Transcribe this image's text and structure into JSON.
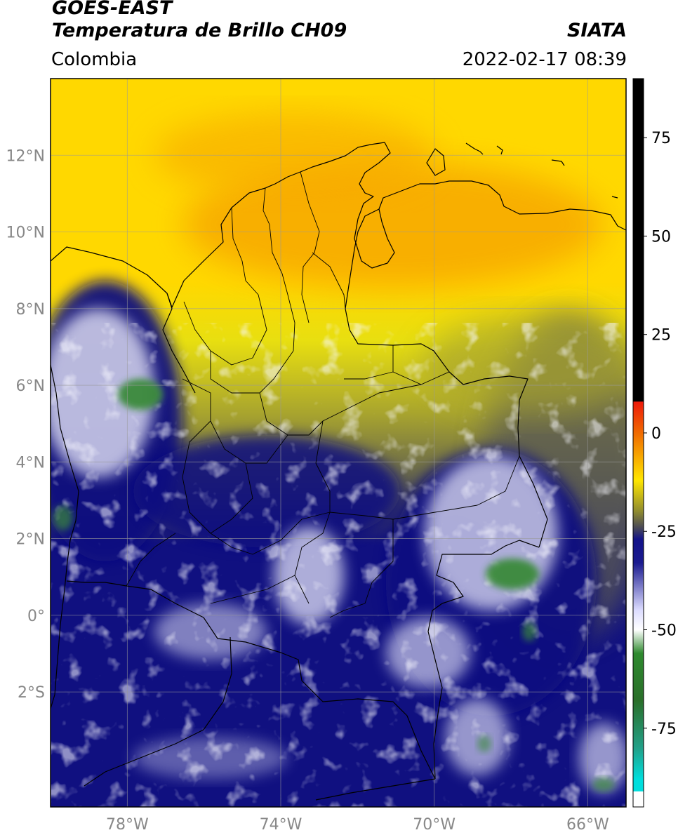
{
  "header": {
    "title_line1": "GOES-EAST",
    "title_line2": "Temperatura de Brillo CH09",
    "organization": "SIATA",
    "region": "Colombia",
    "datetime": "2022-02-17 08:39"
  },
  "axes": {
    "lat_ticks": [
      {
        "value": 12,
        "label": "12°N"
      },
      {
        "value": 10,
        "label": "10°N"
      },
      {
        "value": 8,
        "label": "8°N"
      },
      {
        "value": 6,
        "label": "6°N"
      },
      {
        "value": 4,
        "label": "4°N"
      },
      {
        "value": 2,
        "label": "2°N"
      },
      {
        "value": 0,
        "label": "0°"
      },
      {
        "value": -2,
        "label": "2°S"
      }
    ],
    "lon_ticks": [
      {
        "value": -78,
        "label": "78°W"
      },
      {
        "value": -74,
        "label": "74°W"
      },
      {
        "value": -70,
        "label": "70°W"
      },
      {
        "value": -66,
        "label": "66°W"
      }
    ],
    "lat_range": [
      -5,
      14
    ],
    "lon_range": [
      -80,
      -65
    ]
  },
  "colorbar": {
    "range": [
      -95,
      90
    ],
    "ticks": [
      {
        "value": 75,
        "label": "75"
      },
      {
        "value": 50,
        "label": "50"
      },
      {
        "value": 25,
        "label": "25"
      },
      {
        "value": 0,
        "label": "0"
      },
      {
        "value": -25,
        "label": "-25"
      },
      {
        "value": -50,
        "label": "-50"
      },
      {
        "value": -75,
        "label": "-75"
      }
    ],
    "stops": [
      {
        "value": 90,
        "color": "#000000"
      },
      {
        "value": 8,
        "color": "#000000"
      },
      {
        "value": 7.9,
        "color": "#ee1a0a"
      },
      {
        "value": 0,
        "color": "#f06a00"
      },
      {
        "value": -12,
        "color": "#ffe600"
      },
      {
        "value": -20,
        "color": "#8e8a2f"
      },
      {
        "value": -24,
        "color": "#4a4a55"
      },
      {
        "value": -27,
        "color": "#131389"
      },
      {
        "value": -33,
        "color": "#1a1a8f"
      },
      {
        "value": -45,
        "color": "#dcdcff"
      },
      {
        "value": -50,
        "color": "#ffffff"
      },
      {
        "value": -56,
        "color": "#2e8a2e"
      },
      {
        "value": -68,
        "color": "#2a6f2a"
      },
      {
        "value": -80,
        "color": "#22a088"
      },
      {
        "value": -88,
        "color": "#00dedd"
      },
      {
        "value": -91,
        "color": "#00dedd"
      },
      {
        "value": -91.1,
        "color": "#ffffff"
      },
      {
        "value": -95,
        "color": "#ffffff"
      }
    ]
  },
  "field_colors": {
    "very_warm": "#f7a800",
    "warm": "#ffd800",
    "mild": "#e8df10",
    "dry_olive": "#a8a42e",
    "moist_gray": "#5a5a52",
    "cold_blue": "#101080",
    "cloud_white": "#f0f0ff",
    "coldest_green": "#3a8a3a"
  },
  "map_features": [
    "coastline",
    "country-borders",
    "department-borders",
    "gridlines"
  ]
}
